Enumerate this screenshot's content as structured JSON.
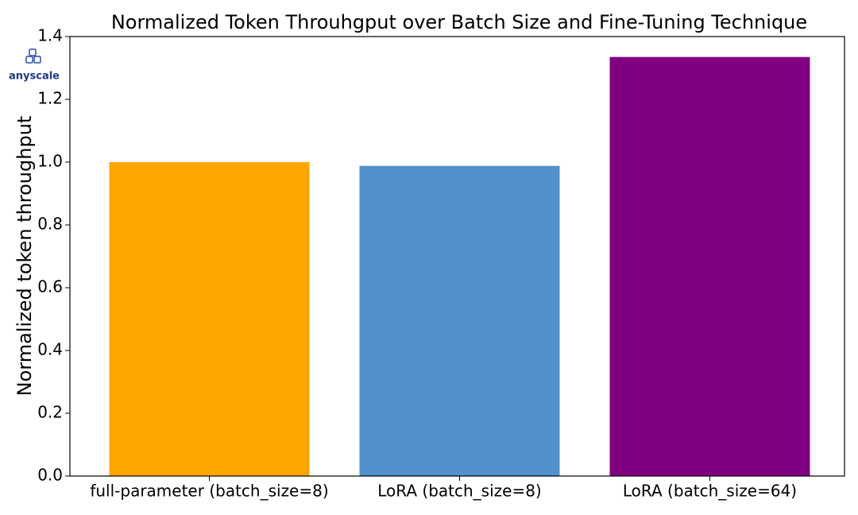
{
  "chart_data": {
    "type": "bar",
    "title": "Normalized Token Throuhgput over Batch Size and Fine-Tuning Technique",
    "y_label": "Normalized token throughput",
    "categories": [
      "full-parameter (batch_size=8)",
      "LoRA (batch_size=8)",
      "LoRA (batch_size=64)"
    ],
    "values": [
      1.0,
      0.988,
      1.335
    ],
    "colors": [
      "#ffa500",
      "#5190cc",
      "#800080"
    ],
    "ylim": [
      0,
      1.4
    ],
    "yticks": [
      {
        "value": 0,
        "label": "0.0"
      },
      0.2,
      0.4,
      0.6,
      0.8,
      {
        "value": 1,
        "label": "1.0"
      },
      1.2,
      1.4
    ],
    "grid": false
  },
  "logo": "anyscale"
}
